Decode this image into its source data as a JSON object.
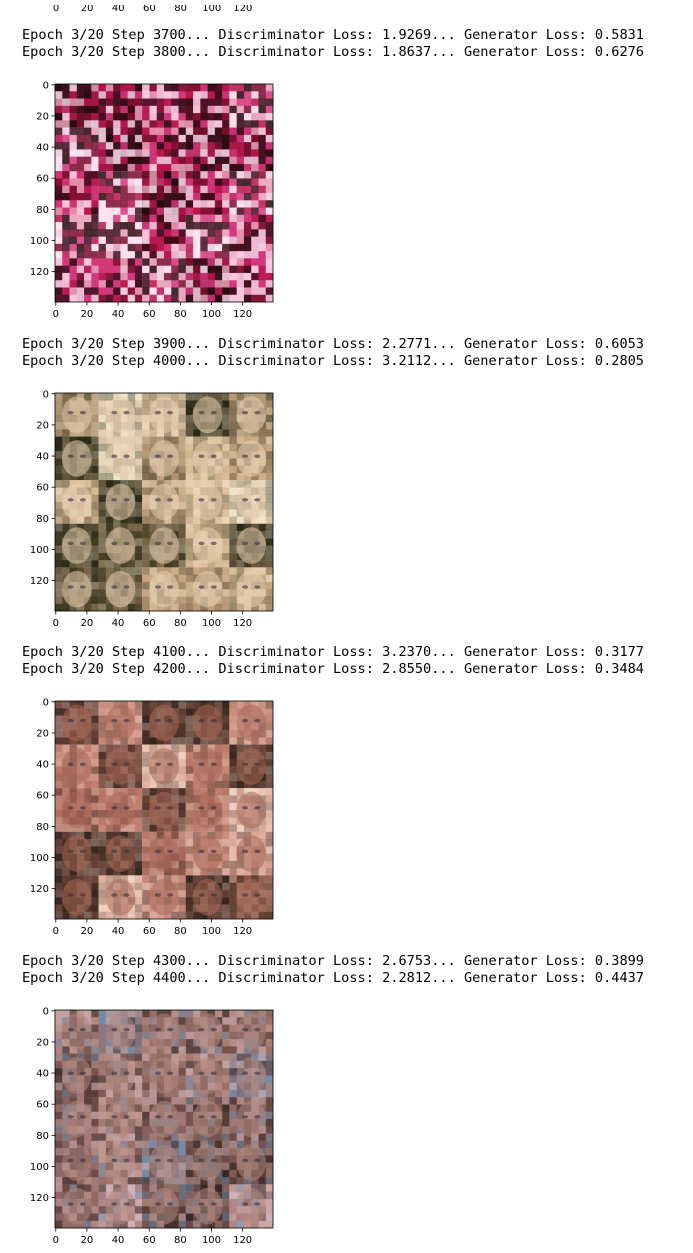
{
  "top_partial_ticks": [
    "0",
    "20",
    "40",
    "60",
    "80",
    "100",
    "120"
  ],
  "blocks": [
    {
      "log_lines": [
        "Epoch 3/20 Step 3700... Discriminator Loss: 1.9269... Generator Loss: 0.5831",
        "Epoch 3/20 Step 3800... Discriminator Loss: 1.8637... Generator Loss: 0.6276"
      ],
      "palette": [
        "#d23a7a",
        "#e8a0b8",
        "#2a0a10",
        "#7a1030",
        "#f0d0e0",
        "#401020",
        "#b81850",
        "#ffe0f0"
      ],
      "style": "noise"
    },
    {
      "log_lines": [
        "Epoch 3/20 Step 3900... Discriminator Loss: 2.2771... Generator Loss: 0.6053",
        "Epoch 3/20 Step 4000... Discriminator Loss: 3.2112... Generator Loss: 0.2805"
      ],
      "palette": [
        "#c8a684",
        "#e8d0b0",
        "#6a5a3a",
        "#2a2a18",
        "#a08868",
        "#f0e4c8",
        "#4a4228",
        "#d8bc98"
      ],
      "style": "faces"
    },
    {
      "log_lines": [
        "Epoch 3/20 Step 4100... Discriminator Loss: 3.2370... Generator Loss: 0.3177",
        "Epoch 3/20 Step 4200... Discriminator Loss: 2.8550... Generator Loss: 0.3484"
      ],
      "palette": [
        "#c08070",
        "#a86858",
        "#e0b0a0",
        "#5a3a30",
        "#d09888",
        "#7a5040",
        "#f0d0c0",
        "#3a2820"
      ],
      "style": "faces"
    },
    {
      "log_lines": [
        "Epoch 3/20 Step 4300... Discriminator Loss: 2.6753... Generator Loss: 0.3899",
        "Epoch 3/20 Step 4400... Discriminator Loss: 2.2812... Generator Loss: 0.4437"
      ],
      "palette": [
        "#9a7068",
        "#b08880",
        "#5a4038",
        "#c8a098",
        "#7888a0",
        "#3a2a28",
        "#d0b0b8",
        "#886060"
      ],
      "style": "noisyfaces"
    }
  ],
  "axis": {
    "xticks": [
      "0",
      "20",
      "40",
      "60",
      "80",
      "100",
      "120"
    ],
    "yticks": [
      "0",
      "20",
      "40",
      "60",
      "80",
      "100",
      "120"
    ]
  }
}
